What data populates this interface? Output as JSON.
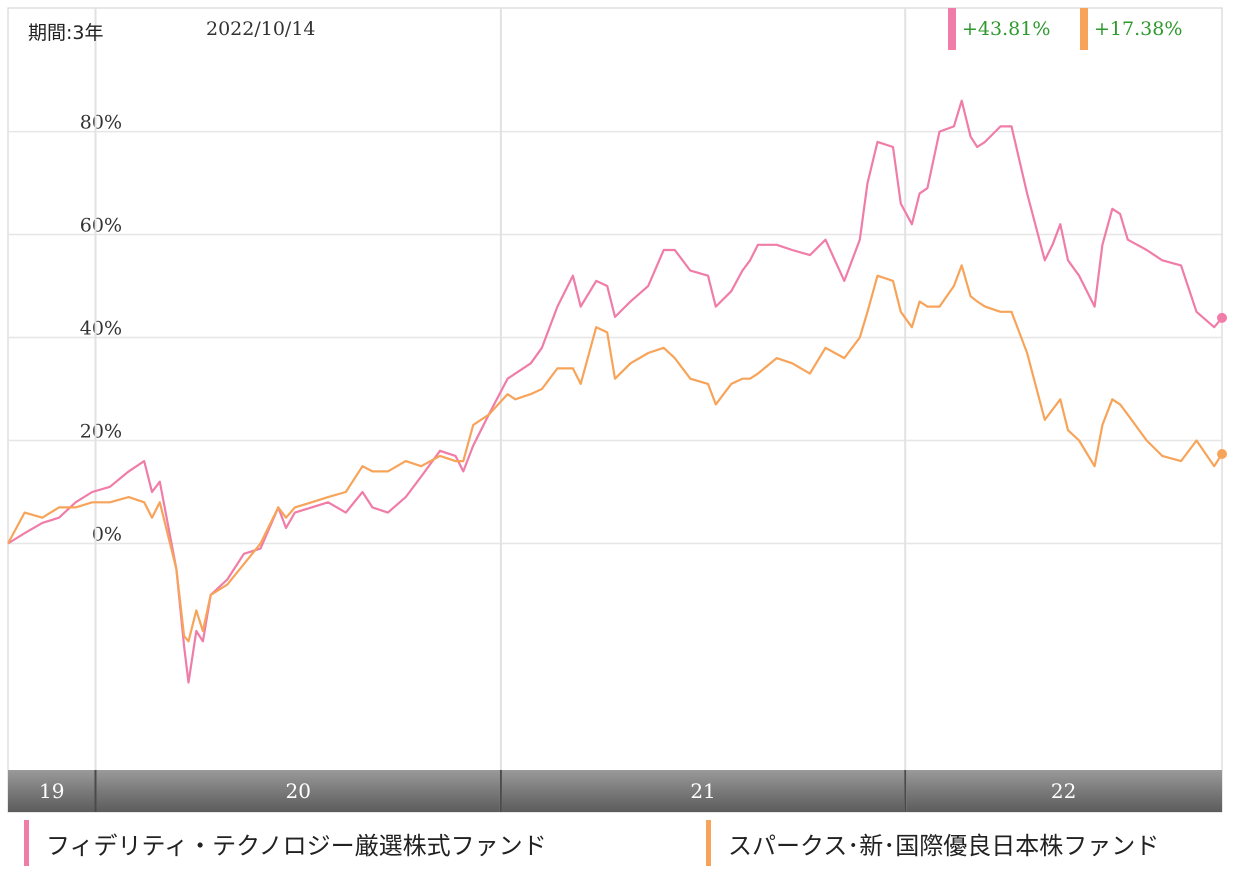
{
  "header": {
    "period": "期間:3年",
    "date": "2022/10/14",
    "returns": [
      {
        "text": "+43.81%",
        "color": "#f07ca8"
      },
      {
        "text": "+17.38%",
        "color": "#f7a45a"
      }
    ]
  },
  "legend": [
    {
      "name": "フィデリティ・テクノロジー厳選株式ファンド",
      "color": "#f07ca8"
    },
    {
      "name": "スパークス･新･国際優良日本株ファンド",
      "color": "#f7a45a"
    }
  ],
  "chart_data": {
    "type": "line",
    "title": "",
    "xlabel": "",
    "ylabel": "",
    "x_start": "2019-10-14",
    "x_end": "2022-10-14",
    "x_ticks": [
      {
        "label": "19",
        "date": "2019-10-14"
      },
      {
        "label": "20",
        "date": "2020-01-01"
      },
      {
        "label": "21",
        "date": "2021-01-01"
      },
      {
        "label": "22",
        "date": "2022-01-01"
      }
    ],
    "y_ticks": [
      {
        "value": 0,
        "label": "0%"
      },
      {
        "value": 20,
        "label": "20%"
      },
      {
        "value": 40,
        "label": "40%"
      },
      {
        "value": 60,
        "label": "60%"
      },
      {
        "value": 80,
        "label": "80%"
      }
    ],
    "ylim": [
      -44,
      104
    ],
    "grid": true,
    "series": [
      {
        "name": "フィデリティ・テクノロジー厳選株式ファンド",
        "color": "#f07ca8",
        "points": [
          [
            "2019-10-14",
            0
          ],
          [
            "2019-10-29",
            2
          ],
          [
            "2019-11-14",
            4
          ],
          [
            "2019-11-29",
            5
          ],
          [
            "2019-12-14",
            8
          ],
          [
            "2019-12-29",
            10
          ],
          [
            "2020-01-14",
            11
          ],
          [
            "2020-01-31",
            14
          ],
          [
            "2020-02-14",
            16
          ],
          [
            "2020-02-21",
            10
          ],
          [
            "2020-02-28",
            12
          ],
          [
            "2020-03-14",
            -5
          ],
          [
            "2020-03-21",
            -20
          ],
          [
            "2020-03-25",
            -27
          ],
          [
            "2020-04-01",
            -17
          ],
          [
            "2020-04-07",
            -19
          ],
          [
            "2020-04-14",
            -10
          ],
          [
            "2020-04-29",
            -7
          ],
          [
            "2020-05-14",
            -2
          ],
          [
            "2020-05-29",
            -1
          ],
          [
            "2020-06-14",
            7
          ],
          [
            "2020-06-21",
            3
          ],
          [
            "2020-06-29",
            6
          ],
          [
            "2020-07-14",
            7
          ],
          [
            "2020-07-29",
            8
          ],
          [
            "2020-08-14",
            6
          ],
          [
            "2020-08-29",
            10
          ],
          [
            "2020-09-07",
            7
          ],
          [
            "2020-09-21",
            6
          ],
          [
            "2020-10-07",
            9
          ],
          [
            "2020-10-21",
            13
          ],
          [
            "2020-11-07",
            18
          ],
          [
            "2020-11-21",
            17
          ],
          [
            "2020-11-28",
            14
          ],
          [
            "2020-12-07",
            19
          ],
          [
            "2020-12-21",
            25
          ],
          [
            "2021-01-07",
            32
          ],
          [
            "2021-01-14",
            33
          ],
          [
            "2021-01-28",
            35
          ],
          [
            "2021-02-07",
            38
          ],
          [
            "2021-02-21",
            46
          ],
          [
            "2021-03-07",
            52
          ],
          [
            "2021-03-14",
            46
          ],
          [
            "2021-03-28",
            51
          ],
          [
            "2021-04-07",
            50
          ],
          [
            "2021-04-14",
            44
          ],
          [
            "2021-04-28",
            47
          ],
          [
            "2021-05-14",
            50
          ],
          [
            "2021-05-28",
            57
          ],
          [
            "2021-06-07",
            57
          ],
          [
            "2021-06-21",
            53
          ],
          [
            "2021-07-07",
            52
          ],
          [
            "2021-07-14",
            46
          ],
          [
            "2021-07-28",
            49
          ],
          [
            "2021-08-07",
            53
          ],
          [
            "2021-08-14",
            55
          ],
          [
            "2021-08-21",
            58
          ],
          [
            "2021-09-07",
            58
          ],
          [
            "2021-09-21",
            57
          ],
          [
            "2021-10-07",
            56
          ],
          [
            "2021-10-21",
            59
          ],
          [
            "2021-11-07",
            51
          ],
          [
            "2021-11-21",
            59
          ],
          [
            "2021-11-28",
            70
          ],
          [
            "2021-12-07",
            78
          ],
          [
            "2021-12-21",
            77
          ],
          [
            "2021-12-28",
            66
          ],
          [
            "2022-01-07",
            62
          ],
          [
            "2022-01-14",
            68
          ],
          [
            "2022-01-21",
            69
          ],
          [
            "2022-02-01",
            80
          ],
          [
            "2022-02-14",
            81
          ],
          [
            "2022-02-21",
            86
          ],
          [
            "2022-03-01",
            79
          ],
          [
            "2022-03-07",
            77
          ],
          [
            "2022-03-14",
            78
          ],
          [
            "2022-03-28",
            81
          ],
          [
            "2022-04-07",
            81
          ],
          [
            "2022-04-21",
            68
          ],
          [
            "2022-05-07",
            55
          ],
          [
            "2022-05-14",
            58
          ],
          [
            "2022-05-21",
            62
          ],
          [
            "2022-05-28",
            55
          ],
          [
            "2022-06-07",
            52
          ],
          [
            "2022-06-21",
            46
          ],
          [
            "2022-06-28",
            58
          ],
          [
            "2022-07-07",
            65
          ],
          [
            "2022-07-14",
            64
          ],
          [
            "2022-07-21",
            59
          ],
          [
            "2022-08-07",
            57
          ],
          [
            "2022-08-21",
            55
          ],
          [
            "2022-09-07",
            54
          ],
          [
            "2022-09-21",
            45
          ],
          [
            "2022-10-07",
            42
          ],
          [
            "2022-10-14",
            43.81
          ]
        ]
      },
      {
        "name": "スパークス･新･国際優良日本株ファンド",
        "color": "#f7a45a",
        "points": [
          [
            "2019-10-14",
            0
          ],
          [
            "2019-10-29",
            6
          ],
          [
            "2019-11-14",
            5
          ],
          [
            "2019-11-29",
            7
          ],
          [
            "2019-12-14",
            7
          ],
          [
            "2019-12-29",
            8
          ],
          [
            "2020-01-14",
            8
          ],
          [
            "2020-01-31",
            9
          ],
          [
            "2020-02-14",
            8
          ],
          [
            "2020-02-21",
            5
          ],
          [
            "2020-02-28",
            8
          ],
          [
            "2020-03-14",
            -5
          ],
          [
            "2020-03-21",
            -18
          ],
          [
            "2020-03-25",
            -19
          ],
          [
            "2020-04-01",
            -13
          ],
          [
            "2020-04-07",
            -17
          ],
          [
            "2020-04-14",
            -10
          ],
          [
            "2020-04-29",
            -8
          ],
          [
            "2020-05-14",
            -4
          ],
          [
            "2020-05-29",
            0
          ],
          [
            "2020-06-14",
            7
          ],
          [
            "2020-06-21",
            5
          ],
          [
            "2020-06-29",
            7
          ],
          [
            "2020-07-14",
            8
          ],
          [
            "2020-07-29",
            9
          ],
          [
            "2020-08-14",
            10
          ],
          [
            "2020-08-29",
            15
          ],
          [
            "2020-09-07",
            14
          ],
          [
            "2020-09-21",
            14
          ],
          [
            "2020-10-07",
            16
          ],
          [
            "2020-10-21",
            15
          ],
          [
            "2020-11-07",
            17
          ],
          [
            "2020-11-21",
            16
          ],
          [
            "2020-11-28",
            16
          ],
          [
            "2020-12-07",
            23
          ],
          [
            "2020-12-21",
            25
          ],
          [
            "2021-01-07",
            29
          ],
          [
            "2021-01-14",
            28
          ],
          [
            "2021-01-28",
            29
          ],
          [
            "2021-02-07",
            30
          ],
          [
            "2021-02-21",
            34
          ],
          [
            "2021-03-07",
            34
          ],
          [
            "2021-03-14",
            31
          ],
          [
            "2021-03-28",
            42
          ],
          [
            "2021-04-07",
            41
          ],
          [
            "2021-04-14",
            32
          ],
          [
            "2021-04-28",
            35
          ],
          [
            "2021-05-14",
            37
          ],
          [
            "2021-05-28",
            38
          ],
          [
            "2021-06-07",
            36
          ],
          [
            "2021-06-21",
            32
          ],
          [
            "2021-07-07",
            31
          ],
          [
            "2021-07-14",
            27
          ],
          [
            "2021-07-28",
            31
          ],
          [
            "2021-08-07",
            32
          ],
          [
            "2021-08-14",
            32
          ],
          [
            "2021-08-21",
            33
          ],
          [
            "2021-09-07",
            36
          ],
          [
            "2021-09-21",
            35
          ],
          [
            "2021-10-07",
            33
          ],
          [
            "2021-10-21",
            38
          ],
          [
            "2021-11-07",
            36
          ],
          [
            "2021-11-21",
            40
          ],
          [
            "2021-11-28",
            45
          ],
          [
            "2021-12-07",
            52
          ],
          [
            "2021-12-21",
            51
          ],
          [
            "2021-12-28",
            45
          ],
          [
            "2022-01-07",
            42
          ],
          [
            "2022-01-14",
            47
          ],
          [
            "2022-01-21",
            46
          ],
          [
            "2022-02-01",
            46
          ],
          [
            "2022-02-14",
            50
          ],
          [
            "2022-02-21",
            54
          ],
          [
            "2022-03-01",
            48
          ],
          [
            "2022-03-07",
            47
          ],
          [
            "2022-03-14",
            46
          ],
          [
            "2022-03-28",
            45
          ],
          [
            "2022-04-07",
            45
          ],
          [
            "2022-04-21",
            37
          ],
          [
            "2022-05-07",
            24
          ],
          [
            "2022-05-14",
            26
          ],
          [
            "2022-05-21",
            28
          ],
          [
            "2022-05-28",
            22
          ],
          [
            "2022-06-07",
            20
          ],
          [
            "2022-06-21",
            15
          ],
          [
            "2022-06-28",
            23
          ],
          [
            "2022-07-07",
            28
          ],
          [
            "2022-07-14",
            27
          ],
          [
            "2022-07-21",
            25
          ],
          [
            "2022-08-07",
            20
          ],
          [
            "2022-08-21",
            17
          ],
          [
            "2022-09-07",
            16
          ],
          [
            "2022-09-21",
            20
          ],
          [
            "2022-10-07",
            15
          ],
          [
            "2022-10-14",
            17.38
          ]
        ]
      }
    ]
  }
}
